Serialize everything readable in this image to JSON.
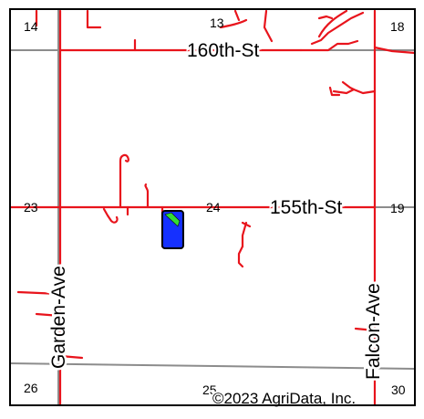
{
  "map": {
    "section_numbers": {
      "s14": "14",
      "s13": "13",
      "s18": "18",
      "s23": "23",
      "s24": "24",
      "s19": "19",
      "s26": "26",
      "s25": "25",
      "s30": "30"
    },
    "roads": {
      "north": "160th-St",
      "middle": "155th-St",
      "west": "Garden-Ave",
      "east": "Falcon-Ave"
    },
    "copyright": "©2023 AgriData, Inc.",
    "colors": {
      "frame": "#000000",
      "section_line": "#8c8c8c",
      "drainage_tile": "#e8141c",
      "field_fill": "#1530ff",
      "field_highlight": "#33dd33",
      "field_outline": "#000000"
    }
  }
}
